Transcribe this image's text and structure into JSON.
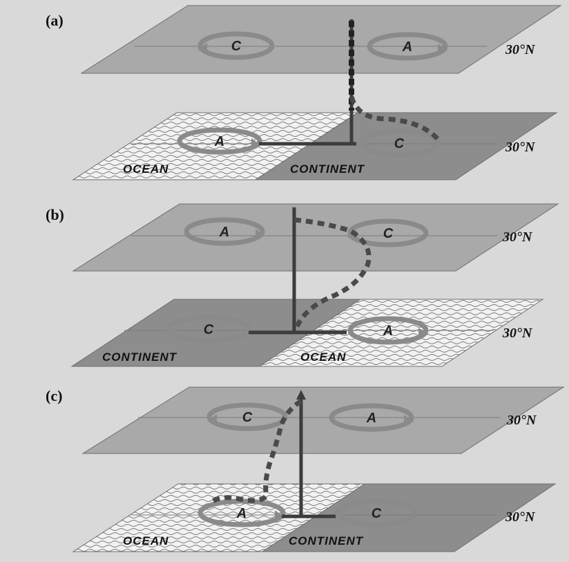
{
  "panels": [
    {
      "label": "(a)",
      "upper": {
        "lat_label": "30°N",
        "cells": [
          "C",
          "A"
        ]
      },
      "lower": {
        "lat_label": "30°N",
        "cells": [
          "A",
          "C"
        ],
        "surfaces": [
          "OCEAN",
          "CONTINENT"
        ]
      }
    },
    {
      "label": "(b)",
      "upper": {
        "lat_label": "30°N",
        "cells": [
          "A",
          "C"
        ]
      },
      "lower": {
        "lat_label": "30°N",
        "cells": [
          "C",
          "A"
        ],
        "surfaces": [
          "CONTINENT",
          "OCEAN"
        ]
      }
    },
    {
      "label": "(c)",
      "upper": {
        "lat_label": "30°N",
        "cells": [
          "C",
          "A"
        ]
      },
      "lower": {
        "lat_label": "30°N",
        "cells": [
          "A",
          "C"
        ],
        "surfaces": [
          "OCEAN",
          "CONTINENT"
        ]
      }
    }
  ],
  "colors": {
    "background": "#d9d9d9",
    "upper_plane": "#a9a9a9",
    "continent": "#8d8d8d",
    "ocean": "#f2f2f2",
    "ring": "#8a8a8a",
    "axis": "#3c3c3c",
    "dashed_tilt": "#4a4a4a"
  }
}
